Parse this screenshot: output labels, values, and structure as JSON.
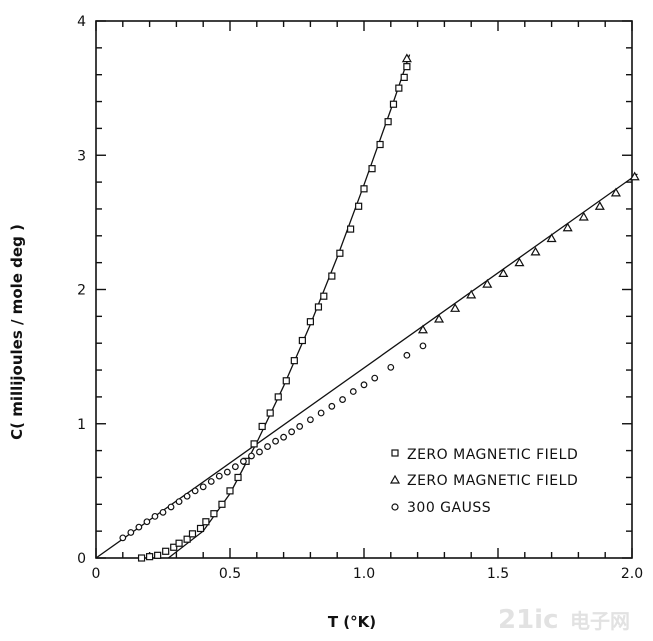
{
  "chart_data": {
    "type": "scatter",
    "title": "",
    "xlabel": "T (°K)",
    "ylabel": "C( millijoules / mole deg )",
    "xlim": [
      0,
      2.0
    ],
    "ylim": [
      0,
      4
    ],
    "x_ticks": [
      0,
      0.5,
      1.0,
      1.5,
      2.0
    ],
    "x_tick_labels": [
      "0",
      "0.5",
      "1.0",
      "1.5",
      "2.0"
    ],
    "y_ticks": [
      0,
      1,
      2,
      3,
      4
    ],
    "y_tick_labels": [
      "0",
      "1",
      "2",
      "3",
      "4"
    ],
    "legend_position": "lower-right",
    "series": [
      {
        "name": "ZERO MAGNETIC FIELD",
        "marker": "square",
        "x": [
          0.17,
          0.2,
          0.23,
          0.26,
          0.29,
          0.31,
          0.34,
          0.36,
          0.39,
          0.41,
          0.44,
          0.47,
          0.5,
          0.53,
          0.56,
          0.59,
          0.62,
          0.65,
          0.68,
          0.71,
          0.74,
          0.77,
          0.8,
          0.83,
          0.85,
          0.88,
          0.91,
          0.95,
          0.98,
          1.0,
          1.03,
          1.06,
          1.09,
          1.11,
          1.13,
          1.15,
          1.16
        ],
        "y": [
          0.0,
          0.01,
          0.02,
          0.05,
          0.08,
          0.11,
          0.14,
          0.18,
          0.22,
          0.27,
          0.33,
          0.4,
          0.5,
          0.6,
          0.72,
          0.85,
          0.98,
          1.08,
          1.2,
          1.32,
          1.47,
          1.62,
          1.76,
          1.87,
          1.95,
          2.1,
          2.27,
          2.45,
          2.62,
          2.75,
          2.9,
          3.08,
          3.25,
          3.38,
          3.5,
          3.58,
          3.66
        ]
      },
      {
        "name": "ZERO MAGNETIC FIELD",
        "marker": "triangle",
        "x": [
          1.16,
          1.22,
          1.28,
          1.34,
          1.4,
          1.46,
          1.52,
          1.58,
          1.64,
          1.7,
          1.76,
          1.82,
          1.88,
          1.94,
          2.01
        ],
        "y": [
          3.72,
          1.7,
          1.78,
          1.86,
          1.96,
          2.04,
          2.12,
          2.2,
          2.28,
          2.38,
          2.46,
          2.54,
          2.62,
          2.72,
          2.84
        ]
      },
      {
        "name": "300 GAUSS",
        "marker": "circle",
        "x": [
          0.1,
          0.13,
          0.16,
          0.19,
          0.22,
          0.25,
          0.28,
          0.31,
          0.34,
          0.37,
          0.4,
          0.43,
          0.46,
          0.49,
          0.52,
          0.55,
          0.58,
          0.61,
          0.64,
          0.67,
          0.7,
          0.73,
          0.76,
          0.8,
          0.84,
          0.88,
          0.92,
          0.96,
          1.0,
          1.04,
          1.1,
          1.16,
          1.22
        ],
        "y": [
          0.15,
          0.19,
          0.23,
          0.27,
          0.31,
          0.34,
          0.38,
          0.42,
          0.46,
          0.5,
          0.53,
          0.57,
          0.61,
          0.64,
          0.68,
          0.72,
          0.76,
          0.79,
          0.83,
          0.87,
          0.9,
          0.94,
          0.98,
          1.03,
          1.08,
          1.13,
          1.18,
          1.24,
          1.29,
          1.34,
          1.42,
          1.51,
          1.58
        ]
      }
    ],
    "fit_lines": [
      {
        "name": "steep-fit",
        "points": [
          [
            0.27,
            0.0
          ],
          [
            0.4,
            0.2
          ],
          [
            0.5,
            0.48
          ],
          [
            0.6,
            0.86
          ],
          [
            0.7,
            1.28
          ],
          [
            0.8,
            1.74
          ],
          [
            0.9,
            2.24
          ],
          [
            1.0,
            2.78
          ],
          [
            1.1,
            3.34
          ],
          [
            1.17,
            3.75
          ]
        ]
      },
      {
        "name": "linear-fit",
        "points": [
          [
            0.0,
            0.0
          ],
          [
            2.02,
            2.86
          ]
        ]
      }
    ]
  },
  "watermark": {
    "text": "21ic",
    "subtext": "电子网"
  }
}
